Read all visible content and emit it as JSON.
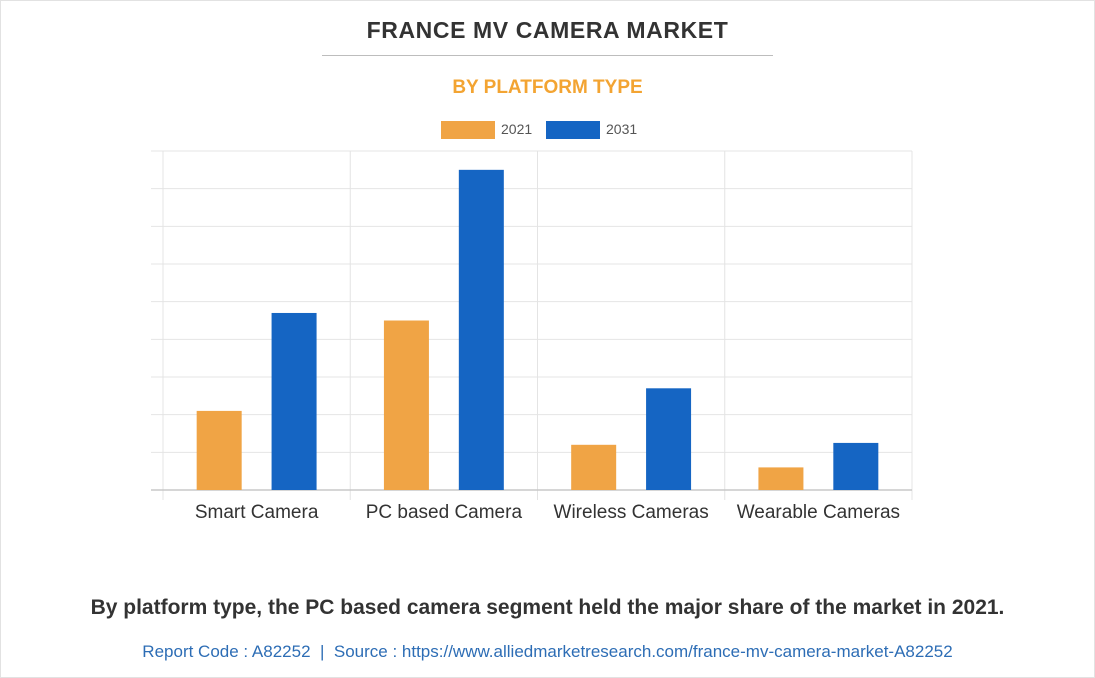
{
  "header": {
    "title": "FRANCE MV CAMERA MARKET",
    "subtitle": "BY PLATFORM TYPE"
  },
  "colors": {
    "title": "#333333",
    "subtitle": "#f3a432",
    "series_2021": "#f0a445",
    "series_2031": "#1565c3",
    "link": "#2d6db5"
  },
  "chart_data": {
    "type": "bar",
    "title": "BY PLATFORM TYPE",
    "categories": [
      "Smart Camera",
      "PC based Camera",
      "Wireless Cameras",
      "Wearable Cameras"
    ],
    "series": [
      {
        "name": "2021",
        "values": [
          2.1,
          4.5,
          1.2,
          0.6
        ]
      },
      {
        "name": "2031",
        "values": [
          4.7,
          8.5,
          2.7,
          1.25
        ]
      }
    ],
    "xlabel": "",
    "ylabel": "",
    "ylim": [
      0,
      9
    ],
    "y_gridlines": 9,
    "legend_position": "top-center",
    "y_tick_labels_visible": false
  },
  "caption": "By platform type, the PC based camera segment held the major share of the market in 2021.",
  "footer": {
    "report_code": "Report Code : A82252",
    "separator": "|",
    "source": "Source : https://www.alliedmarketresearch.com/france-mv-camera-market-A82252"
  }
}
